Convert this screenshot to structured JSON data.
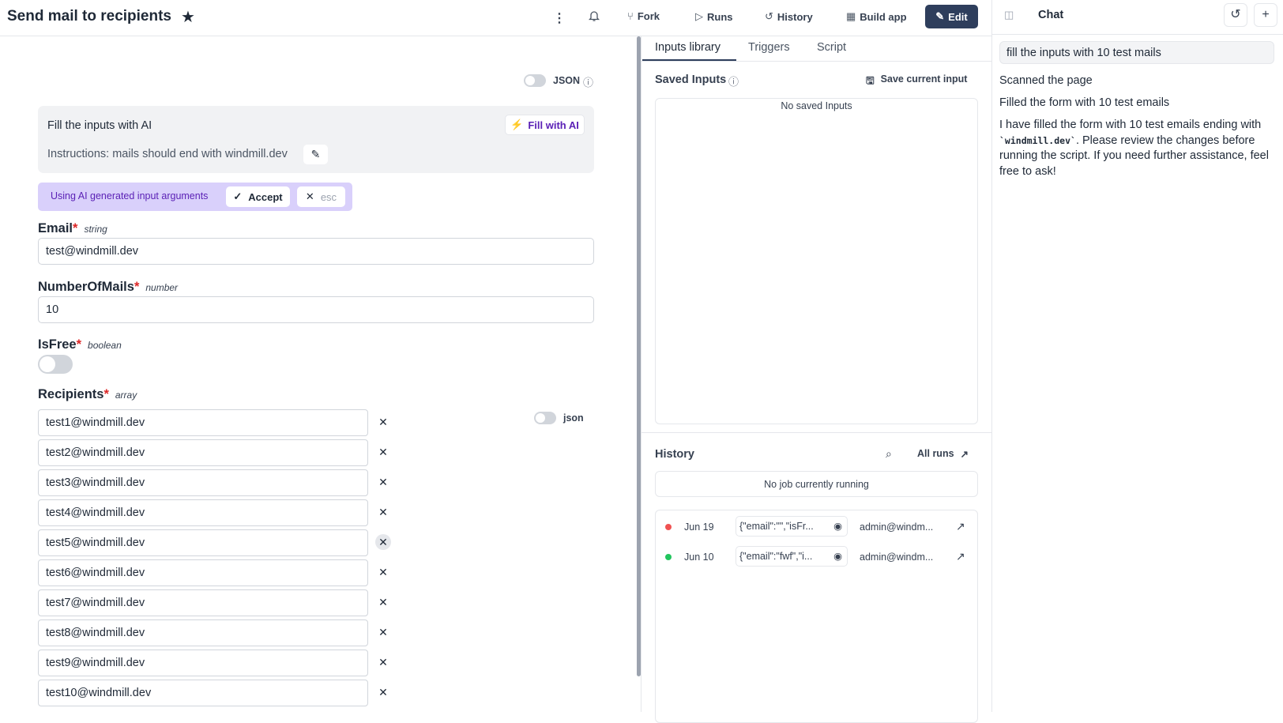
{
  "header": {
    "title": "Send mail to recipients",
    "fork": "Fork",
    "runs": "Runs",
    "history": "History",
    "build_app": "Build app",
    "edit": "Edit"
  },
  "form": {
    "json_toggle_label": "JSON",
    "ai": {
      "title": "Fill the inputs with AI",
      "fill_button": "Fill with AI",
      "instructions": "Instructions: mails should end with windmill.dev"
    },
    "ai_bar": {
      "text": "Using AI generated input arguments",
      "accept": "Accept",
      "esc": "esc"
    },
    "email": {
      "label": "Email",
      "type": "string",
      "value": "test@windmill.dev"
    },
    "number_of_mails": {
      "label": "NumberOfMails",
      "type": "number",
      "value": "10"
    },
    "is_free": {
      "label": "IsFree",
      "type": "boolean",
      "value": false
    },
    "recipients": {
      "label": "Recipients",
      "type": "array",
      "json_label": "json",
      "items": [
        "test1@windmill.dev",
        "test2@windmill.dev",
        "test3@windmill.dev",
        "test4@windmill.dev",
        "test5@windmill.dev",
        "test6@windmill.dev",
        "test7@windmill.dev",
        "test8@windmill.dev",
        "test9@windmill.dev",
        "test10@windmill.dev"
      ]
    }
  },
  "middle": {
    "tabs": [
      "Inputs library",
      "Triggers",
      "Script"
    ],
    "saved_inputs": {
      "title": "Saved Inputs",
      "save_button": "Save current input",
      "empty": "No saved Inputs"
    },
    "history": {
      "title": "History",
      "all_runs": "All runs",
      "no_job": "No job currently running",
      "rows": [
        {
          "date": "Jun 19",
          "args": "{\"email\":\"\",\"isFr...",
          "user": "admin@windm...",
          "status_color": "#f05252"
        },
        {
          "date": "Jun 10",
          "args": "{\"email\":\"fwf\",\"i...",
          "user": "admin@windm...",
          "status_color": "#22c55e"
        }
      ]
    }
  },
  "chat": {
    "title": "Chat",
    "input": "fill the inputs with 10 test mails",
    "messages": [
      "Scanned the page",
      "Filled the form with 10 test emails"
    ],
    "reply_prefix": "I have filled the form with 10 test emails ending with ",
    "reply_code": "`windmill.dev`",
    "reply_suffix": ". Please review the changes before running the script. If you need further assistance, feel free to ask!"
  }
}
